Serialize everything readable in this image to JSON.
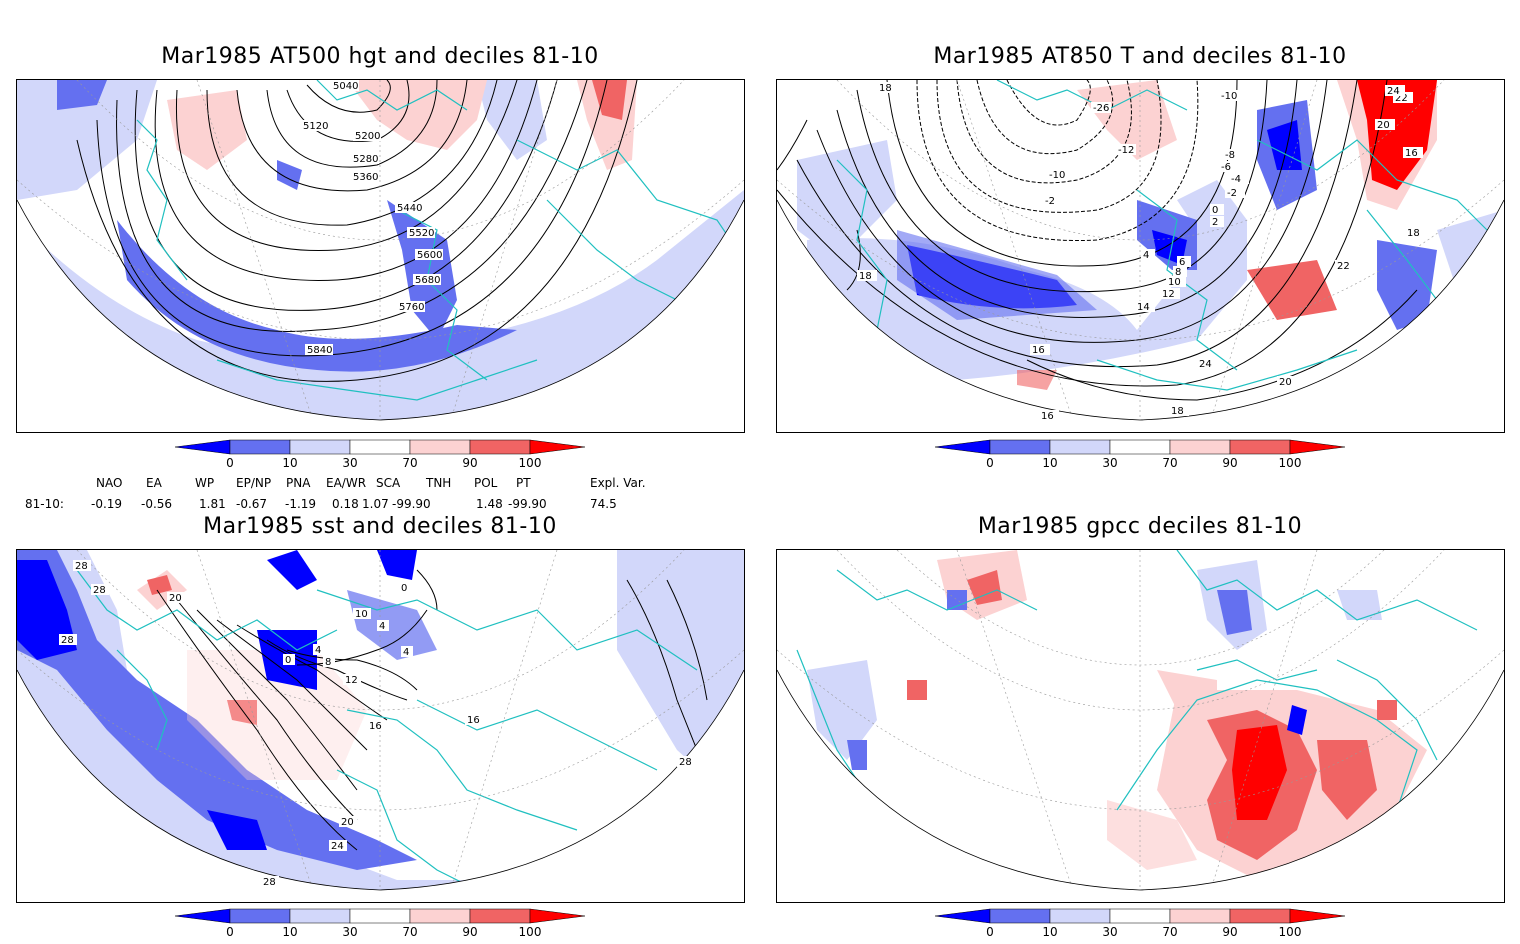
{
  "panels": [
    {
      "id": "hgt500",
      "title": "Mar1985 AT500 hgt and deciles 81-10",
      "contour_labels": [
        "5040",
        "5120",
        "5200",
        "5280",
        "5360",
        "5440",
        "5520",
        "5600",
        "5680",
        "5760",
        "5840"
      ]
    },
    {
      "id": "t850",
      "title": "Mar1985 AT850 T and deciles 81-10",
      "contour_labels": [
        "18",
        "-10",
        "-26",
        "-12",
        "-8",
        "-6",
        "-4",
        "-2",
        "-10",
        "-2",
        "0",
        "2",
        "4",
        "6",
        "8",
        "10",
        "12",
        "14",
        "16",
        "18",
        "20",
        "22",
        "24",
        "16",
        "18",
        "22",
        "24",
        "20",
        "18",
        "16"
      ]
    },
    {
      "id": "sst",
      "title": "Mar1985 sst and deciles 81-10",
      "contour_labels": [
        "28",
        "28",
        "20",
        "28",
        "0",
        "4",
        "8",
        "12",
        "16",
        "20",
        "24",
        "28",
        "10",
        "4",
        "0",
        "4",
        "16",
        "28"
      ]
    },
    {
      "id": "gpcc",
      "title": "Mar1985 gpcc deciles 81-10",
      "contour_labels": []
    }
  ],
  "colorbar": {
    "ticks": [
      "0",
      "10",
      "30",
      "70",
      "90",
      "100"
    ],
    "colors": {
      "dark_blue": "#0000ff",
      "mid_blue": "#6470f0",
      "light_blue": "#d2d7fa",
      "white": "#ffffff",
      "light_red": "#fcd2d2",
      "mid_red": "#f06464",
      "dark_red": "#ff0000"
    }
  },
  "teleconnection_indices": {
    "headers": [
      "NAO",
      "EA",
      "WP",
      "EP/NP",
      "PNA",
      "EA/WR",
      "SCA",
      "TNH",
      "POL",
      "PT",
      "Expl. Var."
    ],
    "row_label": "81-10:",
    "values": [
      "-0.19",
      "-0.56",
      "1.81",
      "-0.67",
      "-1.19",
      "0.18",
      "1.07",
      "-99.90",
      "1.48",
      "-99.90",
      "74.5"
    ]
  },
  "colors": {
    "coastline": "#20c0c0",
    "contour": "#000000",
    "grid": "#999999"
  }
}
